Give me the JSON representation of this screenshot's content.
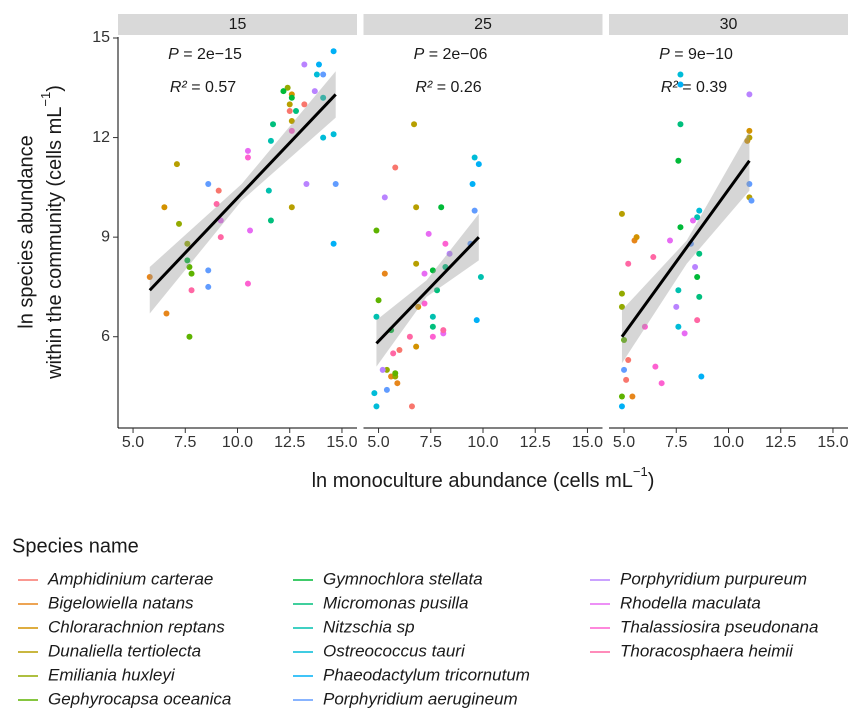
{
  "x_label": {
    "text": "ln monoculture abundance (cells mL",
    "sup": "−1",
    "end": ")"
  },
  "y_label": {
    "line1": "ln species abundance",
    "line2": "within the community (cells mL",
    "sup": "−1",
    "end": ")"
  },
  "legend": {
    "title": "Species name",
    "series": [
      {
        "name": "Amphidinium carterae",
        "color": "#F8766D"
      },
      {
        "name": "Bigelowiella natans",
        "color": "#E7861B"
      },
      {
        "name": "Chlorarachnion reptans",
        "color": "#D39200"
      },
      {
        "name": "Dunaliella tertiolecta",
        "color": "#B79F00"
      },
      {
        "name": "Emiliania huxleyi",
        "color": "#93AA00"
      },
      {
        "name": "Gephyrocapsa oceanica",
        "color": "#5EB300"
      },
      {
        "name": "Gymnochlora stellata",
        "color": "#00BA38"
      },
      {
        "name": "Micromonas pusilla",
        "color": "#00BF7D"
      },
      {
        "name": "Nitzschia sp",
        "color": "#00C0AF"
      },
      {
        "name": "Ostreococcus tauri",
        "color": "#00BCD8"
      },
      {
        "name": "Phaeodactylum tricornutum",
        "color": "#00B0F6"
      },
      {
        "name": "Porphyridium aerugineum",
        "color": "#619CFF"
      },
      {
        "name": "Porphyridium purpureum",
        "color": "#B983FF"
      },
      {
        "name": "Rhodella maculata",
        "color": "#E76BF3"
      },
      {
        "name": "Thalassiosira pseudonana",
        "color": "#FD61D1"
      },
      {
        "name": "Thoracosphaera heimii",
        "color": "#FF67A4"
      }
    ]
  },
  "chart_data": [
    {
      "type": "scatter",
      "strip": "15",
      "p_label": "P",
      "p_text": " = 2e−15",
      "r2_label": "R²",
      "r2_text": " = 0.57",
      "xlim": [
        4.28,
        15.72
      ],
      "ylim": [
        3.25,
        15.03
      ],
      "xticks": [
        {
          "value": 5,
          "label": "5.0"
        },
        {
          "value": 7.5,
          "label": "7.5"
        },
        {
          "value": 10,
          "label": "10.0"
        },
        {
          "value": 12.5,
          "label": "12.5"
        },
        {
          "value": 15,
          "label": "15.0"
        }
      ],
      "yticks": [
        6,
        9,
        12,
        15
      ],
      "series": [
        {
          "color": "#F8766D",
          "x": [
            9.1,
            12.5,
            13.2
          ],
          "values": [
            10.4,
            12.8,
            13.0
          ]
        },
        {
          "color": "#E7861B",
          "x": [
            5.8,
            6.6
          ],
          "values": [
            7.8,
            6.7
          ]
        },
        {
          "color": "#D39200",
          "x": [
            6.5,
            12.6
          ],
          "values": [
            9.9,
            13.3
          ]
        },
        {
          "color": "#B79F00",
          "x": [
            7.1,
            12.6,
            12.6,
            12.5
          ],
          "values": [
            11.2,
            12.5,
            9.9,
            13.0
          ]
        },
        {
          "color": "#93AA00",
          "x": [
            7.2,
            7.6,
            12.4
          ],
          "values": [
            9.4,
            8.8,
            13.5
          ]
        },
        {
          "color": "#5EB300",
          "x": [
            7.7,
            7.7,
            7.8
          ],
          "values": [
            6.0,
            8.1,
            7.9
          ]
        },
        {
          "color": "#00BA38",
          "x": [
            7.6,
            12.2,
            12.6
          ],
          "values": [
            8.3,
            13.4,
            13.2
          ]
        },
        {
          "color": "#00BF7D",
          "x": [
            11.7,
            12.8,
            11.6
          ],
          "values": [
            12.4,
            12.8,
            9.5
          ]
        },
        {
          "color": "#00C0AF",
          "x": [
            11.6,
            11.5,
            14.1
          ],
          "values": [
            11.9,
            10.4,
            13.2
          ]
        },
        {
          "color": "#00BCD8",
          "x": [
            13.8,
            14.6,
            14.1
          ],
          "values": [
            13.9,
            12.1,
            12.0
          ]
        },
        {
          "color": "#00B0F6",
          "x": [
            13.9,
            14.6,
            14.6
          ],
          "values": [
            14.2,
            14.6,
            8.8
          ]
        },
        {
          "color": "#619CFF",
          "x": [
            8.6,
            8.6,
            14.1,
            14.7,
            8.6
          ],
          "values": [
            10.6,
            7.5,
            13.9,
            10.6,
            8.0
          ]
        },
        {
          "color": "#B983FF",
          "x": [
            13.2,
            13.7,
            13.3
          ],
          "values": [
            14.2,
            13.4,
            10.6
          ]
        },
        {
          "color": "#E76BF3",
          "x": [
            10.5,
            10.6,
            9.2
          ],
          "values": [
            11.6,
            9.2,
            9.5
          ]
        },
        {
          "color": "#FD61D1",
          "x": [
            10.5,
            10.5,
            12.6
          ],
          "values": [
            7.6,
            11.4,
            12.2
          ]
        },
        {
          "color": "#FF67A4",
          "x": [
            7.8,
            9.2,
            9.0
          ],
          "values": [
            7.4,
            9.0,
            10.0
          ]
        }
      ],
      "fit": {
        "x": [
          5.8,
          14.7
        ],
        "y": [
          7.4,
          13.3
        ]
      },
      "band": {
        "x": [
          5.8,
          10.2,
          14.7
        ],
        "lower": [
          6.7,
          10.1,
          12.6
        ],
        "upper": [
          8.1,
          10.6,
          14.0
        ]
      }
    },
    {
      "type": "scatter",
      "strip": "25",
      "p_label": "P",
      "p_text": " = 2e−06",
      "r2_label": "R²",
      "r2_text": " = 0.26",
      "xlim": [
        4.28,
        15.72
      ],
      "ylim": [
        3.25,
        15.03
      ],
      "xticks": [
        {
          "value": 5,
          "label": "5.0"
        },
        {
          "value": 7.5,
          "label": "7.5"
        },
        {
          "value": 10,
          "label": "10.0"
        },
        {
          "value": 12.5,
          "label": "12.5"
        },
        {
          "value": 15,
          "label": "15.0"
        }
      ],
      "series": [
        {
          "color": "#F8766D",
          "x": [
            5.8,
            6.0,
            6.6
          ],
          "values": [
            11.1,
            5.6,
            3.9
          ]
        },
        {
          "color": "#E7861B",
          "x": [
            5.3,
            5.6,
            5.9
          ],
          "values": [
            7.9,
            4.8,
            4.6
          ]
        },
        {
          "color": "#D39200",
          "x": [
            6.9,
            6.8
          ],
          "values": [
            6.9,
            5.7
          ]
        },
        {
          "color": "#B79F00",
          "x": [
            6.7,
            6.8,
            6.8
          ],
          "values": [
            12.4,
            9.9,
            8.2
          ]
        },
        {
          "color": "#93AA00",
          "x": [
            5.4,
            5.8
          ],
          "values": [
            5.0,
            4.8
          ]
        },
        {
          "color": "#5EB300",
          "x": [
            4.9,
            5.0,
            5.8
          ],
          "values": [
            9.2,
            7.1,
            4.9
          ]
        },
        {
          "color": "#00BA38",
          "x": [
            7.6,
            5.6,
            8.0
          ],
          "values": [
            8.0,
            6.2,
            9.9
          ]
        },
        {
          "color": "#00BF7D",
          "x": [
            7.8,
            8.2,
            7.6
          ],
          "values": [
            7.4,
            8.1,
            6.3
          ]
        },
        {
          "color": "#00C0AF",
          "x": [
            7.6,
            4.9,
            9.9
          ],
          "values": [
            6.6,
            6.6,
            7.8
          ]
        },
        {
          "color": "#00BCD8",
          "x": [
            4.8,
            4.9,
            9.6
          ],
          "values": [
            4.3,
            3.9,
            11.4
          ]
        },
        {
          "color": "#00B0F6",
          "x": [
            9.8,
            9.5,
            9.7
          ],
          "values": [
            11.2,
            10.6,
            6.5
          ]
        },
        {
          "color": "#619CFF",
          "x": [
            5.4,
            9.6,
            9.4
          ],
          "values": [
            4.4,
            9.8,
            8.8
          ]
        },
        {
          "color": "#B983FF",
          "x": [
            5.3,
            5.2,
            8.4
          ],
          "values": [
            10.2,
            5.0,
            8.5
          ]
        },
        {
          "color": "#E76BF3",
          "x": [
            7.4,
            8.1,
            7.2
          ],
          "values": [
            9.1,
            6.1,
            7.9
          ]
        },
        {
          "color": "#FD61D1",
          "x": [
            7.2,
            7.6,
            8.2
          ],
          "values": [
            7.0,
            6.0,
            8.8
          ]
        },
        {
          "color": "#FF67A4",
          "x": [
            5.7,
            6.5,
            8.1
          ],
          "values": [
            5.5,
            6.0,
            6.2
          ]
        }
      ],
      "fit": {
        "x": [
          4.9,
          9.8
        ],
        "y": [
          5.8,
          9.0
        ]
      },
      "band": {
        "x": [
          4.9,
          7.3,
          9.8
        ],
        "lower": [
          5.1,
          7.2,
          8.3
        ],
        "upper": [
          6.5,
          7.7,
          9.7
        ]
      }
    },
    {
      "type": "scatter",
      "strip": "30",
      "p_label": "P",
      "p_text": " = 9e−10",
      "r2_label": "R²",
      "r2_text": " = 0.39",
      "xlim": [
        4.28,
        15.72
      ],
      "ylim": [
        3.25,
        15.03
      ],
      "xticks": [
        {
          "value": 5,
          "label": "5.0"
        },
        {
          "value": 7.5,
          "label": "7.5"
        },
        {
          "value": 10,
          "label": "10.0"
        },
        {
          "value": 12.5,
          "label": "12.5"
        },
        {
          "value": 15,
          "label": "15.0"
        }
      ],
      "series": [
        {
          "color": "#F8766D",
          "x": [
            5.2,
            5.1
          ],
          "values": [
            5.3,
            4.7
          ]
        },
        {
          "color": "#E7861B",
          "x": [
            5.4,
            5.5
          ],
          "values": [
            4.2,
            8.9
          ]
        },
        {
          "color": "#D39200",
          "x": [
            5.6,
            11.0,
            10.9
          ],
          "values": [
            9.0,
            12.2,
            11.9
          ]
        },
        {
          "color": "#B79F00",
          "x": [
            4.9,
            11.0,
            11.0
          ],
          "values": [
            9.7,
            12.0,
            10.2
          ]
        },
        {
          "color": "#93AA00",
          "x": [
            4.9,
            4.9
          ],
          "values": [
            6.9,
            7.3
          ]
        },
        {
          "color": "#5EB300",
          "x": [
            4.9,
            5.0
          ],
          "values": [
            4.2,
            5.9
          ]
        },
        {
          "color": "#00BA38",
          "x": [
            7.6,
            7.7,
            8.5
          ],
          "values": [
            11.3,
            9.3,
            7.8
          ]
        },
        {
          "color": "#00BF7D",
          "x": [
            7.7,
            8.6,
            8.6
          ],
          "values": [
            12.4,
            8.5,
            7.2
          ]
        },
        {
          "color": "#00C0AF",
          "x": [
            7.6,
            8.5
          ],
          "values": [
            7.4,
            9.6
          ]
        },
        {
          "color": "#00BCD8",
          "x": [
            7.7,
            7.6,
            8.6
          ],
          "values": [
            13.9,
            6.3,
            9.8
          ]
        },
        {
          "color": "#00B0F6",
          "x": [
            4.9,
            7.7,
            8.7
          ],
          "values": [
            3.9,
            13.6,
            4.8
          ]
        },
        {
          "color": "#619CFF",
          "x": [
            5.0,
            11.0,
            11.1,
            8.2
          ],
          "values": [
            5.0,
            10.6,
            10.1,
            8.8
          ]
        },
        {
          "color": "#B983FF",
          "x": [
            11.0,
            7.5,
            8.4
          ],
          "values": [
            13.3,
            6.9,
            8.1
          ]
        },
        {
          "color": "#E76BF3",
          "x": [
            7.2,
            7.9,
            8.3
          ],
          "values": [
            8.9,
            6.1,
            9.5
          ]
        },
        {
          "color": "#FD61D1",
          "x": [
            6.8,
            6.5,
            6.0
          ],
          "values": [
            4.6,
            5.1,
            6.3
          ]
        },
        {
          "color": "#FF67A4",
          "x": [
            5.2,
            6.4,
            8.5
          ],
          "values": [
            8.2,
            8.4,
            6.5
          ]
        }
      ],
      "fit": {
        "x": [
          4.9,
          11.0
        ],
        "y": [
          6.0,
          11.3
        ]
      },
      "band": {
        "x": [
          4.9,
          8.0,
          11.0
        ],
        "lower": [
          5.2,
          8.2,
          10.4
        ],
        "upper": [
          6.8,
          8.9,
          12.2
        ]
      }
    }
  ]
}
